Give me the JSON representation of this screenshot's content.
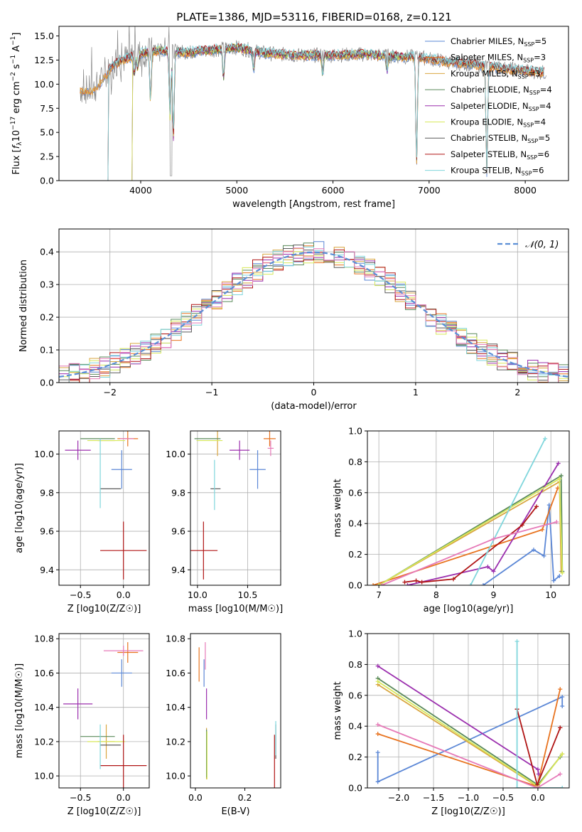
{
  "figure": {
    "title": "PLATE=1386, MJD=53116, FIBERID=0168, z=0.121"
  },
  "colors": {
    "Chabrier MILES": "#5b87d6",
    "Salpeter MILES": "#e8731f",
    "Kroupa MILES": "#d9a640",
    "Chabrier ELODIE": "#5a8a5a",
    "Salpeter ELODIE": "#9b2fae",
    "Kroupa ELODIE": "#d7e85a",
    "Chabrier STELIB": "#5a5a5a",
    "Salpeter STELIB": "#b01414",
    "Kroupa STELIB": "#7fd6dc",
    "pink": "#e67ab8",
    "yellowgreen": "#c8e060",
    "normal_curve": "#5b8fd6"
  },
  "chart_data": [
    {
      "id": "spectrum",
      "type": "line",
      "title": "PLATE=1386, MJD=53116, FIBERID=0168, z=0.121",
      "xlabel": "wavelength [Angstrom, rest frame]",
      "ylabel": "Flux [f_λ 10^-17 erg cm^-2 s^-1 A^-1]",
      "xlim": [
        3150,
        8450
      ],
      "ylim": [
        0,
        16
      ],
      "xticks": [
        4000,
        5000,
        6000,
        7000,
        8000
      ],
      "yticks": [
        0.0,
        2.5,
        5.0,
        7.5,
        10.0,
        12.5,
        15.0
      ],
      "legend": "top-right",
      "series": [
        {
          "name": "Chabrier MILES, N_SSP=5"
        },
        {
          "name": "Salpeter MILES, N_SSP=3"
        },
        {
          "name": "Kroupa MILES, N_SSP=3"
        },
        {
          "name": "Chabrier ELODIE, N_SSP=4"
        },
        {
          "name": "Salpeter ELODIE, N_SSP=4"
        },
        {
          "name": "Kroupa ELODIE, N_SSP=4"
        },
        {
          "name": "Chabrier STELIB, N_SSP=5"
        },
        {
          "name": "Salpeter STELIB, N_SSP=6"
        },
        {
          "name": "Kroupa STELIB, N_SSP=6"
        }
      ],
      "continuum_x": [
        3370,
        3500,
        3600,
        3700,
        3800,
        3900,
        4000,
        4200,
        4500,
        4800,
        5000,
        5300,
        5600,
        6000,
        6300,
        6600,
        6900,
        7200,
        7500,
        7800,
        8000,
        8200
      ],
      "continuum_y": [
        9.5,
        9.3,
        10.5,
        11.8,
        12.5,
        12.8,
        13.2,
        13.5,
        13.3,
        13.6,
        13.8,
        13.2,
        13.0,
        13.0,
        13.1,
        12.9,
        12.8,
        12.3,
        12.0,
        11.6,
        11.4,
        11.2
      ]
    },
    {
      "id": "residuals",
      "type": "bar",
      "xlabel": "(data-model)/error",
      "ylabel": "Normed distribution",
      "xlim": [
        -2.5,
        2.5
      ],
      "ylim": [
        0,
        0.47
      ],
      "xticks": [
        -2,
        -1,
        0,
        1,
        2
      ],
      "yticks": [
        0.0,
        0.1,
        0.2,
        0.3,
        0.4
      ],
      "grid": true,
      "legend": "top-right",
      "legend_label": "N(0,1)",
      "bin_width": 0.1,
      "normal_curve": {
        "mean": 0,
        "sigma": 1
      }
    },
    {
      "id": "age_vs_Z",
      "type": "scatter",
      "xlabel": "Z [log10(Z/Z☉)]",
      "ylabel": "age  [log10(age/yr)]",
      "xlim": [
        -0.75,
        0.3
      ],
      "ylim": [
        9.32,
        10.12
      ],
      "xticks": [
        -0.5,
        0.0
      ],
      "yticks": [
        9.4,
        9.6,
        9.8,
        10.0
      ],
      "grid": true,
      "points": [
        {
          "s": "Chabrier MILES",
          "x": -0.02,
          "y": 9.92,
          "xe": 0.12,
          "ye": 0.1
        },
        {
          "s": "Salpeter MILES",
          "x": 0.05,
          "y": 10.08,
          "xe": 0.12,
          "ye": 0.04
        },
        {
          "s": "Kroupa MILES",
          "x": -0.2,
          "y": 10.07,
          "xe": 0.1,
          "ye": 0.0
        },
        {
          "s": "Chabrier ELODIE",
          "x": -0.3,
          "y": 10.08,
          "xe": 0.2,
          "ye": 0.0
        },
        {
          "s": "Salpeter ELODIE",
          "x": -0.53,
          "y": 10.02,
          "xe": 0.15,
          "ye": 0.05
        },
        {
          "s": "Kroupa ELODIE",
          "x": -0.2,
          "y": 10.07,
          "xe": 0.22,
          "ye": 0.0
        },
        {
          "s": "Chabrier STELIB",
          "x": -0.15,
          "y": 9.82,
          "xe": 0.12,
          "ye": 0.0
        },
        {
          "s": "Salpeter STELIB",
          "x": 0.0,
          "y": 9.5,
          "xe": 0.27,
          "ye": 0.15
        },
        {
          "s": "Kroupa STELIB",
          "x": -0.27,
          "y": 9.9,
          "xe": 0.0,
          "ye": 0.18
        },
        {
          "s": "pink",
          "x": 0.04,
          "y": 10.08,
          "xe": 0.08,
          "ye": 0.0
        }
      ]
    },
    {
      "id": "age_vs_mass",
      "type": "scatter",
      "xlabel": "mass [log10(M/M☉)]",
      "ylabel": "",
      "xlim": [
        9.93,
        10.83
      ],
      "ylim": [
        9.32,
        10.12
      ],
      "xticks": [
        10.0,
        10.5
      ],
      "yticks": [
        9.4,
        9.6,
        9.8,
        10.0
      ],
      "grid": true,
      "points": [
        {
          "s": "Chabrier MILES",
          "x": 10.6,
          "y": 9.92,
          "xe": 0.08,
          "ye": 0.1
        },
        {
          "s": "Salpeter MILES",
          "x": 10.72,
          "y": 10.08,
          "xe": 0.06,
          "ye": 0.04
        },
        {
          "s": "Kroupa MILES",
          "x": 10.2,
          "y": 10.07,
          "xe": 0.0,
          "ye": 0.08
        },
        {
          "s": "Chabrier ELODIE",
          "x": 10.1,
          "y": 10.08,
          "xe": 0.13,
          "ye": 0.0
        },
        {
          "s": "Salpeter ELODIE",
          "x": 10.42,
          "y": 10.02,
          "xe": 0.1,
          "ye": 0.05
        },
        {
          "s": "Kroupa ELODIE",
          "x": 10.12,
          "y": 10.07,
          "xe": 0.13,
          "ye": 0.0
        },
        {
          "s": "Chabrier STELIB",
          "x": 10.18,
          "y": 9.82,
          "xe": 0.05,
          "ye": 0.0
        },
        {
          "s": "Salpeter STELIB",
          "x": 10.06,
          "y": 9.5,
          "xe": 0.14,
          "ye": 0.15
        },
        {
          "s": "Kroupa STELIB",
          "x": 10.17,
          "y": 9.84,
          "xe": 0.0,
          "ye": 0.13
        },
        {
          "s": "pink",
          "x": 10.73,
          "y": 10.03,
          "xe": 0.03,
          "ye": 0.04
        }
      ]
    },
    {
      "id": "weight_vs_age",
      "type": "line",
      "xlabel": "age  [log10(age/yr)]",
      "ylabel": "mass weight",
      "xlim": [
        6.8,
        10.32
      ],
      "ylim": [
        0,
        1.0
      ],
      "xticks": [
        7,
        8,
        9,
        10
      ],
      "yticks": [
        0.0,
        0.2,
        0.4,
        0.6,
        0.8,
        1.0
      ],
      "grid": true,
      "series": [
        {
          "s": "Chabrier MILES",
          "x": [
            8.82,
            9.7,
            9.88,
            9.97,
            10.05,
            10.15
          ],
          "y": [
            0.0,
            0.23,
            0.19,
            0.52,
            0.03,
            0.06
          ]
        },
        {
          "s": "Salpeter MILES",
          "x": [
            6.9,
            9.85,
            10.12
          ],
          "y": [
            0.0,
            0.36,
            0.63
          ]
        },
        {
          "s": "Kroupa MILES",
          "x": [
            7.0,
            10.15,
            10.18
          ],
          "y": [
            0.0,
            0.67,
            0.09
          ]
        },
        {
          "s": "Chabrier ELODIE",
          "x": [
            7.0,
            10.18,
            10.2
          ],
          "y": [
            0.0,
            0.71,
            0.09
          ]
        },
        {
          "s": "Salpeter ELODIE",
          "x": [
            7.5,
            8.9,
            9.0,
            10.13
          ],
          "y": [
            0.0,
            0.12,
            0.09,
            0.79
          ]
        },
        {
          "s": "Kroupa ELODIE",
          "x": [
            7.0,
            10.15,
            10.2
          ],
          "y": [
            0.0,
            0.69,
            0.08
          ]
        },
        {
          "s": "Salpeter STELIB",
          "x": [
            7.45,
            7.65,
            7.75,
            8.3,
            9.5,
            9.75
          ],
          "y": [
            0.02,
            0.03,
            0.02,
            0.04,
            0.39,
            0.51
          ]
        },
        {
          "s": "Kroupa STELIB",
          "x": [
            8.6,
            9.9
          ],
          "y": [
            0.0,
            0.95
          ]
        },
        {
          "s": "pink",
          "x": [
            7.05,
            9.0,
            10.1
          ],
          "y": [
            0.0,
            0.3,
            0.41
          ]
        }
      ]
    },
    {
      "id": "mass_vs_Z",
      "type": "scatter",
      "xlabel": "Z [log10(Z/Z☉)]",
      "ylabel": "mass [log10(M/M☉)]",
      "xlim": [
        -0.75,
        0.3
      ],
      "ylim": [
        9.93,
        10.83
      ],
      "xticks": [
        -0.5,
        0.0
      ],
      "yticks": [
        10.0,
        10.2,
        10.4,
        10.6,
        10.8
      ],
      "grid": true,
      "points": [
        {
          "s": "Chabrier MILES",
          "x": -0.02,
          "y": 10.6,
          "xe": 0.12,
          "ye": 0.08
        },
        {
          "s": "Salpeter MILES",
          "x": 0.05,
          "y": 10.72,
          "xe": 0.12,
          "ye": 0.06
        },
        {
          "s": "Kroupa MILES",
          "x": -0.2,
          "y": 10.2,
          "xe": 0.1,
          "ye": 0.1
        },
        {
          "s": "Chabrier ELODIE",
          "x": -0.3,
          "y": 10.23,
          "xe": 0.2,
          "ye": 0.0
        },
        {
          "s": "Salpeter ELODIE",
          "x": -0.53,
          "y": 10.42,
          "xe": 0.17,
          "ye": 0.09
        },
        {
          "s": "Kroupa ELODIE",
          "x": -0.2,
          "y": 10.2,
          "xe": 0.22,
          "ye": 0.0
        },
        {
          "s": "Chabrier STELIB",
          "x": -0.15,
          "y": 10.18,
          "xe": 0.12,
          "ye": 0.0
        },
        {
          "s": "Salpeter STELIB",
          "x": 0.0,
          "y": 10.06,
          "xe": 0.27,
          "ye": 0.18
        },
        {
          "s": "Kroupa STELIB",
          "x": -0.27,
          "y": 10.17,
          "xe": 0.0,
          "ye": 0.13
        },
        {
          "s": "pink",
          "x": 0.0,
          "y": 10.73,
          "xe": 0.23,
          "ye": 0.03
        }
      ]
    },
    {
      "id": "mass_vs_EBV",
      "type": "scatter",
      "xlabel": "E(B-V)",
      "ylabel": "",
      "xlim": [
        -0.02,
        0.345
      ],
      "ylim": [
        9.93,
        10.83
      ],
      "xticks": [
        0.0,
        0.2
      ],
      "yticks": [
        10.0,
        10.2,
        10.4,
        10.6,
        10.8
      ],
      "grid": false,
      "points": [
        {
          "s": "Chabrier MILES",
          "x": 0.035,
          "y": 10.6,
          "xe": 0.0,
          "ye": 0.08
        },
        {
          "s": "Salpeter MILES",
          "x": 0.015,
          "y": 10.65,
          "xe": 0.0,
          "ye": 0.1
        },
        {
          "s": "Kroupa MILES",
          "x": 0.045,
          "y": 10.13,
          "xe": 0.0,
          "ye": 0.15
        },
        {
          "s": "Chabrier ELODIE",
          "x": 0.045,
          "y": 10.13,
          "xe": 0.0,
          "ye": 0.14
        },
        {
          "s": "Salpeter ELODIE",
          "x": 0.045,
          "y": 10.42,
          "xe": 0.0,
          "ye": 0.09
        },
        {
          "s": "Kroupa ELODIE",
          "x": 0.047,
          "y": 10.12,
          "xe": 0.0,
          "ye": 0.14
        },
        {
          "s": "Chabrier STELIB",
          "x": 0.325,
          "y": 10.2,
          "xe": 0.0,
          "ye": 0.1
        },
        {
          "s": "Salpeter STELIB",
          "x": 0.32,
          "y": 10.08,
          "xe": 0.0,
          "ye": 0.16
        },
        {
          "s": "Kroupa STELIB",
          "x": 0.325,
          "y": 10.22,
          "xe": 0.0,
          "ye": 0.1
        },
        {
          "s": "pink",
          "x": 0.04,
          "y": 10.7,
          "xe": 0.0,
          "ye": 0.08
        }
      ]
    },
    {
      "id": "weight_vs_Z",
      "type": "line",
      "xlabel": "Z [log10(Z/Z☉)]",
      "ylabel": "mass weight",
      "xlim": [
        -2.45,
        0.45
      ],
      "ylim": [
        0,
        1.0
      ],
      "xticks": [
        -2.0,
        -1.5,
        -1.0,
        -0.5,
        0.0
      ],
      "yticks": [
        0.0,
        0.2,
        0.4,
        0.6,
        0.8,
        1.0
      ],
      "grid": true,
      "series": [
        {
          "s": "Chabrier MILES",
          "x": [
            -2.3,
            -2.3,
            0.35,
            0.35
          ],
          "y": [
            0.23,
            0.04,
            0.59,
            0.53
          ]
        },
        {
          "s": "Salpeter MILES",
          "x": [
            -2.3,
            -0.01,
            0.32
          ],
          "y": [
            0.35,
            0.01,
            0.64
          ]
        },
        {
          "s": "Kroupa MILES",
          "x": [
            -2.3,
            -0.01,
            0.35
          ],
          "y": [
            0.67,
            0.01,
            0.22
          ]
        },
        {
          "s": "Chabrier ELODIE",
          "x": [
            -2.3,
            0.0,
            0.32
          ],
          "y": [
            0.71,
            0.02,
            0.2
          ]
        },
        {
          "s": "Salpeter ELODIE",
          "x": [
            -2.3,
            0.0,
            0.01
          ],
          "y": [
            0.79,
            0.12,
            0.09
          ]
        },
        {
          "s": "Kroupa ELODIE",
          "x": [
            -2.3,
            0.0,
            0.35
          ],
          "y": [
            0.69,
            0.01,
            0.22
          ]
        },
        {
          "s": "Salpeter STELIB",
          "x": [
            -0.3,
            -0.3,
            -0.01,
            0.32,
            0.32
          ],
          "y": [
            0.51,
            0.51,
            0.02,
            0.39,
            0.39
          ]
        },
        {
          "s": "Kroupa STELIB",
          "x": [
            -0.3,
            -0.3,
            0.35
          ],
          "y": [
            0.95,
            0.0,
            0.0
          ]
        },
        {
          "s": "pink",
          "x": [
            -2.3,
            -0.01,
            0.32
          ],
          "y": [
            0.41,
            0.0,
            0.09
          ]
        }
      ]
    }
  ]
}
